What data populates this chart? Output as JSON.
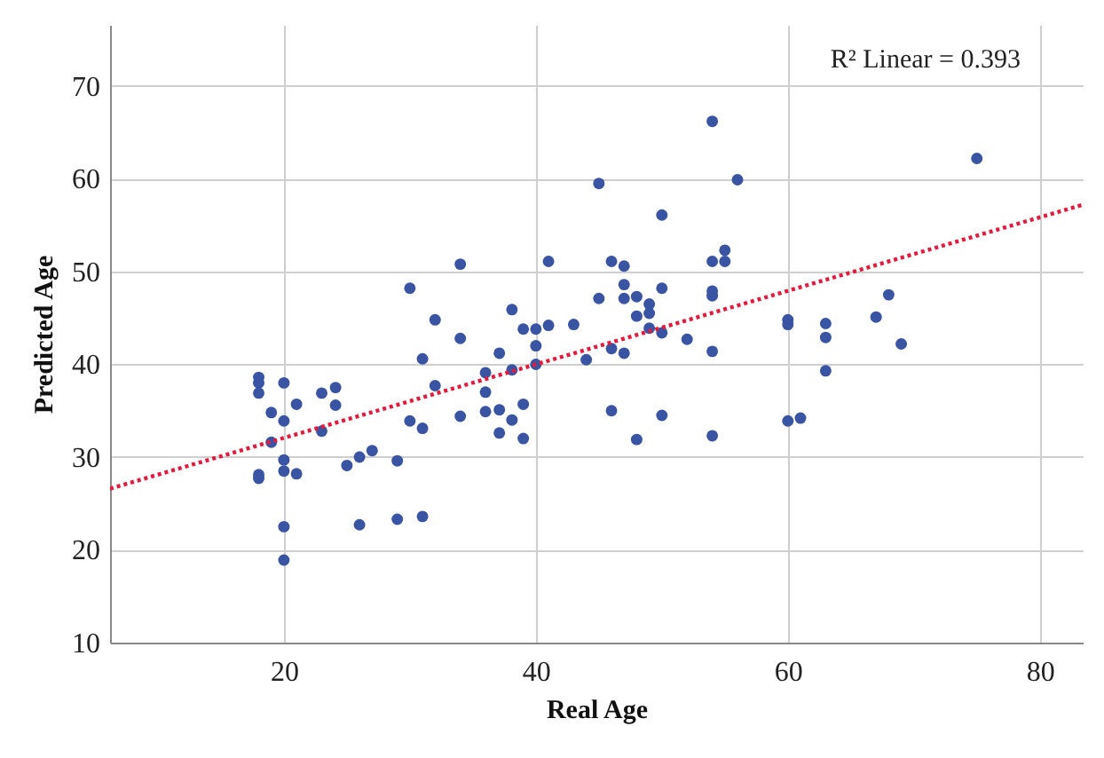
{
  "chart_data": {
    "type": "scatter",
    "xlabel": "Real Age",
    "ylabel": "Predicted Age",
    "xlim": [
      6.2,
      83.4
    ],
    "ylim": [
      10,
      76.6
    ],
    "xticks": [
      20,
      40,
      60,
      80
    ],
    "yticks": [
      10,
      20,
      30,
      40,
      50,
      60,
      70
    ],
    "grid": true,
    "annotations": [
      "R² Linear = 0.393"
    ],
    "series": [
      {
        "marker": "circle",
        "color": "#3a54a4",
        "x": [
          18,
          18,
          18,
          18,
          18,
          19,
          19,
          20,
          20,
          20,
          20,
          20,
          20,
          21,
          21,
          23,
          23,
          24.1,
          24.1,
          25,
          26,
          26,
          27,
          29,
          29,
          30,
          30,
          31,
          31,
          31,
          32,
          32,
          34,
          34,
          34,
          36,
          36,
          36,
          37.1,
          37.1,
          37.1,
          38.1,
          38.1,
          38.1,
          39,
          39,
          39,
          40,
          40,
          40,
          41,
          41,
          43,
          44,
          45,
          45,
          46,
          46,
          46,
          47,
          47,
          47,
          47,
          48,
          48,
          48,
          49,
          49,
          49,
          50,
          50,
          50,
          50,
          52,
          54,
          54,
          54,
          54,
          54,
          54,
          55,
          55,
          56,
          60,
          60,
          60,
          61,
          63,
          63,
          63,
          67,
          68,
          69,
          75
        ],
        "values": [
          38.6,
          38.0,
          36.9,
          28.1,
          27.7,
          34.8,
          31.6,
          38.0,
          33.9,
          29.7,
          28.5,
          22.5,
          18.9,
          35.7,
          28.2,
          36.9,
          32.8,
          37.5,
          35.6,
          29.1,
          30.0,
          22.7,
          30.7,
          29.6,
          23.3,
          33.9,
          48.2,
          40.6,
          33.1,
          23.6,
          37.7,
          44.8,
          34.4,
          42.8,
          50.8,
          39.1,
          37.0,
          34.9,
          41.2,
          35.1,
          32.6,
          39.4,
          34.0,
          45.9,
          35.7,
          32.0,
          43.8,
          40.0,
          42.0,
          43.8,
          51.1,
          44.2,
          44.3,
          40.5,
          59.5,
          47.1,
          51.1,
          41.7,
          35.0,
          50.6,
          41.2,
          48.6,
          47.1,
          47.3,
          45.2,
          31.9,
          46.5,
          45.5,
          43.9,
          56.1,
          48.2,
          43.4,
          34.5,
          42.7,
          66.2,
          51.1,
          47.9,
          47.4,
          41.4,
          32.3,
          52.3,
          51.1,
          59.9,
          44.8,
          44.3,
          33.9,
          34.2,
          44.4,
          42.9,
          39.3,
          45.1,
          47.5,
          42.2,
          62.2
        ]
      },
      {
        "type": "line",
        "marker": "none",
        "color": "#e31a3b",
        "line_style": "dotted",
        "x": [
          6.2,
          83.4
        ],
        "values": [
          26.6,
          57.2
        ]
      }
    ]
  }
}
